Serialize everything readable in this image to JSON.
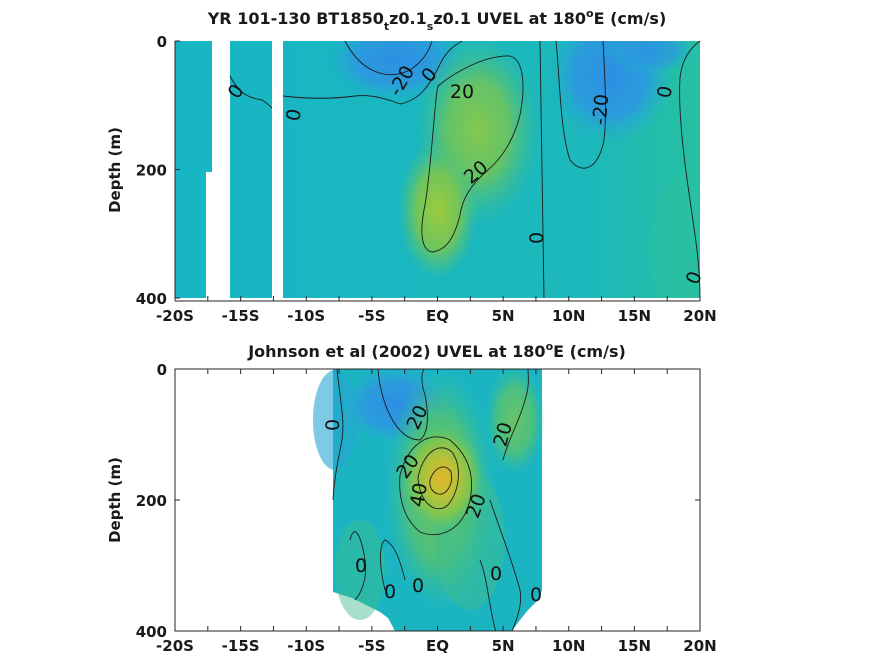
{
  "chart_data": [
    {
      "type": "heatmap",
      "title": "YR 101-130 BT1850",
      "title_parts": [
        "YR 101-130 BT1850",
        "t",
        "z0.1",
        "s",
        "z0.1 UVEL at 180",
        "o",
        "E (cm/s)"
      ],
      "ylabel": "Depth (m)",
      "xlim": [
        -20,
        20
      ],
      "ylim": [
        0,
        400
      ],
      "y_inverted": true,
      "x_ticks": [
        -20,
        -17.5,
        -15,
        -12.5,
        -10,
        -7.5,
        -5,
        -2.5,
        0,
        2.5,
        5,
        7.5,
        10,
        12.5,
        15,
        17.5,
        20
      ],
      "x_tick_labels": [
        {
          "x": -20,
          "label": "-20S"
        },
        {
          "x": -15,
          "label": "-15S"
        },
        {
          "x": -10,
          "label": "-10S"
        },
        {
          "x": -5,
          "label": "-5S"
        },
        {
          "x": 0,
          "label": "EQ"
        },
        {
          "x": 5,
          "label": "5N"
        },
        {
          "x": 10,
          "label": "10N"
        },
        {
          "x": 15,
          "label": "15N"
        },
        {
          "x": 20,
          "label": "20N"
        }
      ],
      "y_ticks": [
        0,
        200,
        400
      ],
      "y_tick_labels": [
        "0",
        "200",
        "400"
      ],
      "colorscale": "parula",
      "data_gaps_x": [
        [
          -17.6,
          -16.0
        ],
        [
          -12.2,
          -11.4
        ]
      ],
      "features": [
        {
          "kind": "max",
          "x": 2.5,
          "y": 100,
          "value": 20
        },
        {
          "kind": "max",
          "x": 0.0,
          "y": 230,
          "value": 20
        },
        {
          "kind": "min",
          "x": 11.0,
          "y": 60,
          "value": -20
        },
        {
          "kind": "min",
          "x": -3.0,
          "y": 60,
          "value": -20
        }
      ],
      "contour_labels": [
        {
          "text": "0",
          "x": -14.8,
          "y": 75
        },
        {
          "text": "0",
          "x": -10.3,
          "y": 107
        },
        {
          "text": "-20",
          "x": -2.2,
          "y": 65
        },
        {
          "text": "0",
          "x": -0.1,
          "y": 50
        },
        {
          "text": "20",
          "x": 2.0,
          "y": 78
        },
        {
          "text": "-20",
          "x": 12.9,
          "y": 102
        },
        {
          "text": "0",
          "x": 17.6,
          "y": 70
        },
        {
          "text": "20",
          "x": 3.3,
          "y": 200
        },
        {
          "text": "0",
          "x": 8.0,
          "y": 300
        },
        {
          "text": "0",
          "x": 19.8,
          "y": 365
        }
      ]
    },
    {
      "type": "heatmap",
      "title": "Johnson et al (2002) UVEL at 180",
      "title_parts": [
        "Johnson et al (2002) UVEL at 180",
        "o",
        "E (cm/s)"
      ],
      "ylabel": "Depth (m)",
      "xlim": [
        -20,
        20
      ],
      "ylim": [
        0,
        400
      ],
      "y_inverted": true,
      "x_ticks": [
        -20,
        -17.5,
        -15,
        -12.5,
        -10,
        -7.5,
        -5,
        -2.5,
        0,
        2.5,
        5,
        7.5,
        10,
        12.5,
        15,
        17.5,
        20
      ],
      "x_tick_labels": [
        {
          "x": -20,
          "label": "-20S"
        },
        {
          "x": -15,
          "label": "-15S"
        },
        {
          "x": -10,
          "label": "-10S"
        },
        {
          "x": -5,
          "label": "-5S"
        },
        {
          "x": 0,
          "label": "EQ"
        },
        {
          "x": 5,
          "label": "5N"
        },
        {
          "x": 10,
          "label": "10N"
        },
        {
          "x": 15,
          "label": "15N"
        },
        {
          "x": 20,
          "label": "20N"
        }
      ],
      "y_ticks": [
        0,
        200,
        400
      ],
      "y_tick_labels": [
        "0",
        "200",
        "400"
      ],
      "colorscale": "parula",
      "data_extent_x": [
        -8,
        8
      ],
      "features": [
        {
          "kind": "max",
          "x": 0.5,
          "y": 170,
          "value": 40
        },
        {
          "kind": "min",
          "x": -3.0,
          "y": 60,
          "value": -20
        },
        {
          "kind": "max",
          "x": 6.0,
          "y": 80,
          "value": 20
        }
      ],
      "contour_labels": [
        {
          "text": "0",
          "x": -7.3,
          "y": 88
        },
        {
          "text": "20",
          "x": -1.2,
          "y": 82
        },
        {
          "text": "20",
          "x": 5.5,
          "y": 100
        },
        {
          "text": "20",
          "x": -1.7,
          "y": 152
        },
        {
          "text": "40",
          "x": -0.6,
          "y": 188
        },
        {
          "text": "20",
          "x": 3.3,
          "y": 205
        },
        {
          "text": "0",
          "x": -5.2,
          "y": 300
        },
        {
          "text": "0",
          "x": -1.3,
          "y": 330
        },
        {
          "text": "0",
          "x": 4.7,
          "y": 310
        },
        {
          "text": "0",
          "x": -3.7,
          "y": 340
        },
        {
          "text": "0",
          "x": 7.6,
          "y": 345
        }
      ]
    }
  ]
}
